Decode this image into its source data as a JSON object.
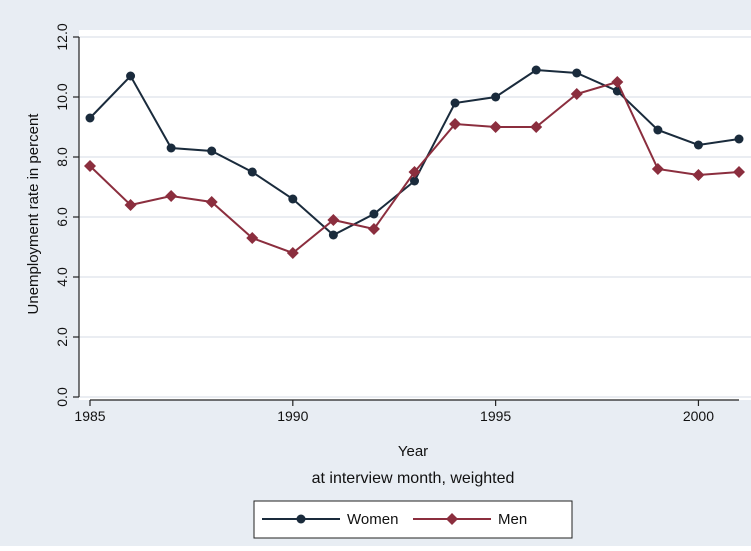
{
  "chart_data": {
    "type": "line",
    "title": "",
    "xlabel": "Year",
    "xsubtitle": "at interview month, weighted",
    "ylabel": "Unemployment rate in percent",
    "x": [
      1985,
      1986,
      1987,
      1988,
      1989,
      1990,
      1991,
      1992,
      1993,
      1994,
      1995,
      1996,
      1997,
      1998,
      1999,
      2000,
      2001
    ],
    "xlim": [
      1985,
      2001
    ],
    "ylim": [
      0,
      12
    ],
    "xticks": [
      1985,
      1990,
      1995,
      2000
    ],
    "xtick_labels": [
      "1985",
      "1990",
      "1995",
      "2000"
    ],
    "yticks": [
      0,
      2,
      4,
      6,
      8,
      10,
      12
    ],
    "ytick_labels": [
      "0.0",
      "2.0",
      "4.0",
      "6.0",
      "8.0",
      "10.0",
      "12.0"
    ],
    "grid": true,
    "legend_position": "bottom",
    "series": [
      {
        "name": "Women",
        "color": "#1a2b3c",
        "marker": "circle",
        "values": [
          9.3,
          10.7,
          8.3,
          8.2,
          7.5,
          6.6,
          5.4,
          6.1,
          7.2,
          9.8,
          10.0,
          10.9,
          10.8,
          10.2,
          8.9,
          8.4,
          8.6
        ]
      },
      {
        "name": "Men",
        "color": "#8b2e3e",
        "marker": "diamond",
        "values": [
          7.7,
          6.4,
          6.7,
          6.5,
          5.3,
          4.8,
          5.9,
          5.6,
          7.5,
          9.1,
          9.0,
          9.0,
          10.1,
          10.5,
          7.6,
          7.4,
          7.5
        ]
      }
    ]
  },
  "colors": {
    "outer_background": "#e8edf3",
    "plot_background": "#ffffff",
    "grid": "#e3e7ee",
    "axis": "#222222"
  }
}
